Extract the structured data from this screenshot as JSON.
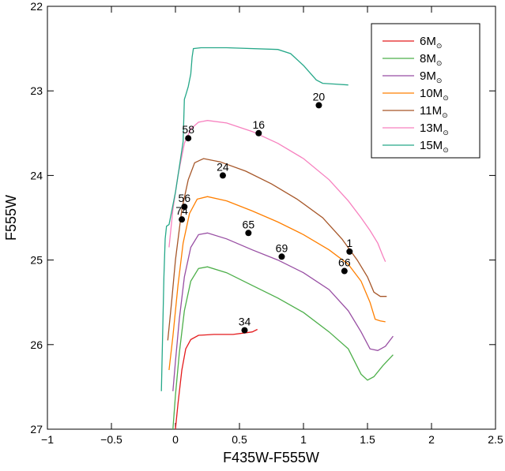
{
  "chart_data": {
    "type": "line",
    "xlabel": "F435W-F555W",
    "ylabel": "F555W",
    "xlim": [
      -1,
      2.5
    ],
    "ylim": [
      27,
      22
    ],
    "y_inverted": true,
    "xticks": [
      "−1",
      "−0.5",
      "0",
      "0.5",
      "1",
      "1.5",
      "2",
      "2.5"
    ],
    "xtick_values": [
      -1,
      -0.5,
      0,
      0.5,
      1,
      1.5,
      2,
      2.5
    ],
    "yticks": [
      "22",
      "23",
      "24",
      "25",
      "26",
      "27"
    ],
    "ytick_values": [
      22,
      23,
      24,
      25,
      26,
      27
    ],
    "legend_position": "top-right",
    "series": [
      {
        "name": "6M",
        "unit_symbol": "⊙",
        "color": "#e41a1c",
        "points": [
          [
            0,
            27
          ],
          [
            0.02,
            26.7
          ],
          [
            0.05,
            26.3
          ],
          [
            0.08,
            26.05
          ],
          [
            0.12,
            25.94
          ],
          [
            0.18,
            25.89
          ],
          [
            0.3,
            25.88
          ],
          [
            0.45,
            25.88
          ],
          [
            0.55,
            25.86
          ],
          [
            0.6,
            25.85
          ],
          [
            0.64,
            25.82
          ]
        ]
      },
      {
        "name": "8M",
        "unit_symbol": "⊙",
        "color": "#4daf4a",
        "points": [
          [
            -0.02,
            27
          ],
          [
            0,
            26.6
          ],
          [
            0.03,
            26.1
          ],
          [
            0.07,
            25.6
          ],
          [
            0.12,
            25.25
          ],
          [
            0.18,
            25.1
          ],
          [
            0.25,
            25.08
          ],
          [
            0.4,
            25.15
          ],
          [
            0.6,
            25.3
          ],
          [
            0.8,
            25.45
          ],
          [
            1.0,
            25.62
          ],
          [
            1.2,
            25.85
          ],
          [
            1.35,
            26.05
          ],
          [
            1.45,
            26.35
          ],
          [
            1.5,
            26.42
          ],
          [
            1.55,
            26.38
          ],
          [
            1.62,
            26.25
          ],
          [
            1.7,
            26.12
          ]
        ]
      },
      {
        "name": "9M",
        "unit_symbol": "⊙",
        "color": "#984ea3",
        "points": [
          [
            -0.02,
            26.55
          ],
          [
            0,
            26.2
          ],
          [
            0.03,
            25.7
          ],
          [
            0.07,
            25.2
          ],
          [
            0.12,
            24.85
          ],
          [
            0.18,
            24.7
          ],
          [
            0.25,
            24.68
          ],
          [
            0.4,
            24.75
          ],
          [
            0.6,
            24.88
          ],
          [
            0.8,
            25.0
          ],
          [
            1.0,
            25.15
          ],
          [
            1.2,
            25.35
          ],
          [
            1.35,
            25.6
          ],
          [
            1.45,
            25.85
          ],
          [
            1.52,
            26.05
          ],
          [
            1.58,
            26.07
          ],
          [
            1.64,
            26.02
          ],
          [
            1.7,
            25.9
          ]
        ]
      },
      {
        "name": "10M",
        "unit_symbol": "⊙",
        "color": "#ff7f00",
        "points": [
          [
            -0.05,
            26.3
          ],
          [
            -0.02,
            25.9
          ],
          [
            0.02,
            25.3
          ],
          [
            0.06,
            24.8
          ],
          [
            0.11,
            24.45
          ],
          [
            0.17,
            24.28
          ],
          [
            0.25,
            24.25
          ],
          [
            0.4,
            24.3
          ],
          [
            0.6,
            24.42
          ],
          [
            0.8,
            24.55
          ],
          [
            1.0,
            24.7
          ],
          [
            1.2,
            24.88
          ],
          [
            1.35,
            25.05
          ],
          [
            1.45,
            25.25
          ],
          [
            1.52,
            25.5
          ],
          [
            1.56,
            25.7
          ],
          [
            1.6,
            25.72
          ],
          [
            1.64,
            25.73
          ]
        ]
      },
      {
        "name": "11M",
        "unit_symbol": "⊙",
        "color": "#a65628",
        "points": [
          [
            -0.06,
            25.95
          ],
          [
            -0.03,
            25.5
          ],
          [
            0,
            25.0
          ],
          [
            0.05,
            24.4
          ],
          [
            0.1,
            24.05
          ],
          [
            0.15,
            23.85
          ],
          [
            0.22,
            23.8
          ],
          [
            0.35,
            23.84
          ],
          [
            0.55,
            23.95
          ],
          [
            0.75,
            24.1
          ],
          [
            0.95,
            24.28
          ],
          [
            1.15,
            24.5
          ],
          [
            1.3,
            24.75
          ],
          [
            1.42,
            25.0
          ],
          [
            1.5,
            25.2
          ],
          [
            1.55,
            25.38
          ],
          [
            1.6,
            25.43
          ],
          [
            1.65,
            25.43
          ]
        ]
      },
      {
        "name": "13M",
        "unit_symbol": "⊙",
        "color": "#f781bf",
        "points": [
          [
            -0.05,
            24.85
          ],
          [
            -0.02,
            24.4
          ],
          [
            0.02,
            24.0
          ],
          [
            0.07,
            23.62
          ],
          [
            0.12,
            23.45
          ],
          [
            0.18,
            23.37
          ],
          [
            0.25,
            23.35
          ],
          [
            0.4,
            23.38
          ],
          [
            0.6,
            23.48
          ],
          [
            0.8,
            23.62
          ],
          [
            1.0,
            23.8
          ],
          [
            1.2,
            24.05
          ],
          [
            1.35,
            24.3
          ],
          [
            1.45,
            24.5
          ],
          [
            1.52,
            24.65
          ],
          [
            1.58,
            24.8
          ],
          [
            1.62,
            24.95
          ],
          [
            1.64,
            25.02
          ]
        ]
      },
      {
        "name": "15M",
        "unit_symbol": "⊙",
        "color": "#26a889",
        "points": [
          [
            -0.11,
            26.55
          ],
          [
            -0.09,
            25.2
          ],
          [
            -0.08,
            24.75
          ],
          [
            -0.07,
            24.6
          ],
          [
            -0.05,
            24.58
          ],
          [
            0,
            24.2
          ],
          [
            0.03,
            23.9
          ],
          [
            0.06,
            23.6
          ],
          [
            0.07,
            23.1
          ],
          [
            0.08,
            23.05
          ],
          [
            0.1,
            22.95
          ],
          [
            0.12,
            22.8
          ],
          [
            0.13,
            22.6
          ],
          [
            0.14,
            22.5
          ],
          [
            0.2,
            22.49
          ],
          [
            0.4,
            22.49
          ],
          [
            0.8,
            22.51
          ],
          [
            0.9,
            22.56
          ],
          [
            1.0,
            22.7
          ],
          [
            1.1,
            22.87
          ],
          [
            1.15,
            22.91
          ],
          [
            1.25,
            22.92
          ],
          [
            1.35,
            22.93
          ]
        ]
      }
    ],
    "points": [
      {
        "label": "20",
        "x": 1.12,
        "y": 23.17
      },
      {
        "label": "16",
        "x": 0.65,
        "y": 23.5
      },
      {
        "label": "58",
        "x": 0.1,
        "y": 23.56
      },
      {
        "label": "24",
        "x": 0.37,
        "y": 24.0
      },
      {
        "label": "56",
        "x": 0.07,
        "y": 24.37
      },
      {
        "label": "74",
        "x": 0.05,
        "y": 24.52
      },
      {
        "label": "65",
        "x": 0.57,
        "y": 24.68
      },
      {
        "label": "69",
        "x": 0.83,
        "y": 24.96
      },
      {
        "label": "1",
        "x": 1.36,
        "y": 24.9
      },
      {
        "label": "66",
        "x": 1.32,
        "y": 25.13
      },
      {
        "label": "34",
        "x": 0.54,
        "y": 25.83
      }
    ]
  }
}
